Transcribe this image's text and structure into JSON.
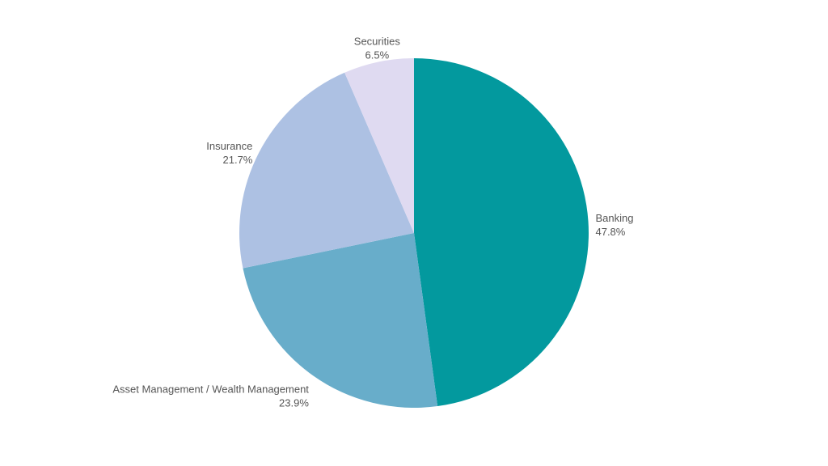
{
  "chart_data": {
    "type": "pie",
    "title": "",
    "slices": [
      {
        "label": "Banking",
        "value": 47.8,
        "display": "47.8%",
        "color": "#03999e"
      },
      {
        "label": "Asset Management / Wealth Management",
        "value": 23.9,
        "display": "23.9%",
        "color": "#68adca"
      },
      {
        "label": "Insurance",
        "value": 21.7,
        "display": "21.7%",
        "color": "#adc1e3"
      },
      {
        "label": "Securities",
        "value": 6.5,
        "display": "6.5%",
        "color": "#dfdaf1"
      }
    ],
    "start_angle": "12 o'clock",
    "direction": "clockwise",
    "legend": "none"
  }
}
